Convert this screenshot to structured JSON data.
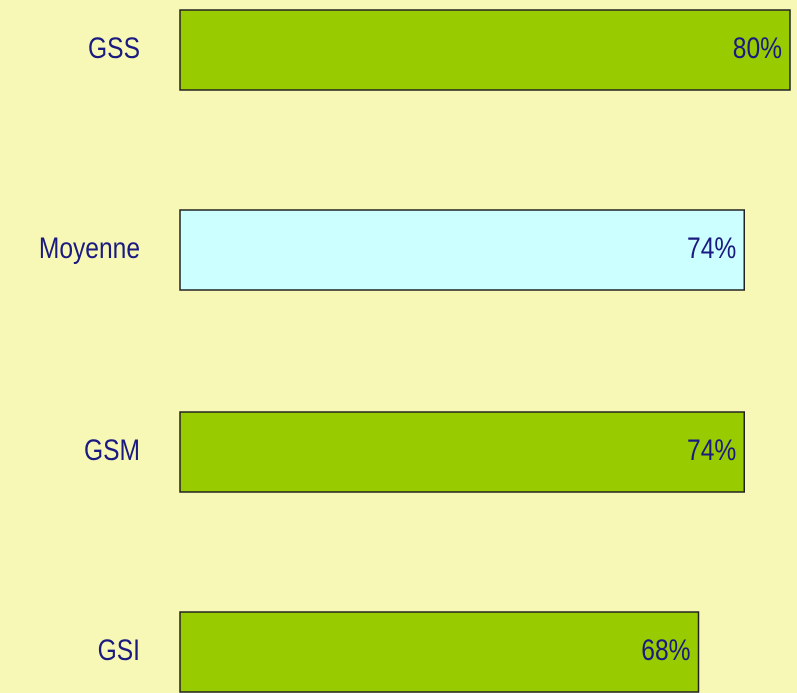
{
  "chart_data": {
    "type": "bar",
    "orientation": "horizontal",
    "categories": [
      "GSS",
      "Moyenne",
      "GSM",
      "GSI"
    ],
    "values": [
      80,
      74,
      74,
      68
    ],
    "value_labels": [
      "80%",
      "74%",
      "74%",
      "68%"
    ],
    "colors": [
      "#99cc00",
      "#ccffff",
      "#99cc00",
      "#99cc00"
    ]
  }
}
